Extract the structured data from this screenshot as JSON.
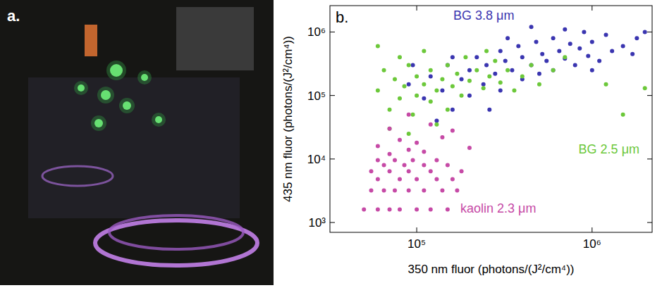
{
  "photo": {
    "label": "a."
  },
  "chart_data": {
    "type": "scatter",
    "panel_label": "b.",
    "xlabel": "350 nm fluor (photons/(J²/cm⁴))",
    "ylabel": "435 nm fluor (photons/(J²/cm⁴))",
    "log": true,
    "grid": false,
    "xlim": [
      32000,
      2200000
    ],
    "ylim": [
      700,
      2600000
    ],
    "xticks": [
      {
        "value": 100000,
        "label": "10⁵"
      },
      {
        "value": 1000000,
        "label": "10⁶"
      }
    ],
    "yticks": [
      {
        "value": 1000,
        "label": "10³"
      },
      {
        "value": 10000,
        "label": "10⁴"
      },
      {
        "value": 100000,
        "label": "10⁵"
      },
      {
        "value": 1000000,
        "label": "10⁶"
      }
    ],
    "series": [
      {
        "name": "BG 3.8 μm",
        "color": "#3a35b0",
        "marker": "dot",
        "x": [
          90000,
          110000,
          120000,
          140000,
          150000,
          160000,
          180000,
          200000,
          200000,
          220000,
          240000,
          250000,
          280000,
          300000,
          300000,
          320000,
          350000,
          380000,
          400000,
          400000,
          450000,
          480000,
          500000,
          520000,
          550000,
          600000,
          600000,
          650000,
          700000,
          750000,
          800000,
          850000,
          900000,
          950000,
          1000000,
          1100000,
          1200000,
          1300000,
          1500000,
          1700000,
          2000000,
          130000,
          260000,
          160000,
          450000,
          700000,
          1000000,
          1800000,
          95000,
          330000
        ],
        "values": [
          150000,
          90000,
          200000,
          120000,
          300000,
          60000,
          180000,
          250000,
          100000,
          400000,
          150000,
          300000,
          220000,
          500000,
          120000,
          350000,
          250000,
          600000,
          180000,
          400000,
          300000,
          700000,
          220000,
          450000,
          350000,
          800000,
          250000,
          500000,
          380000,
          650000,
          300000,
          550000,
          1000000,
          420000,
          700000,
          350000,
          900000,
          500000,
          600000,
          450000,
          1000000,
          40000,
          60000,
          400000,
          1200000,
          1100000,
          250000,
          800000,
          300000,
          800000
        ]
      },
      {
        "name": "BG 2.5 μm",
        "color": "#6cc83a",
        "marker": "dot",
        "x": [
          60000,
          65000,
          70000,
          75000,
          80000,
          80000,
          85000,
          90000,
          95000,
          100000,
          100000,
          110000,
          110000,
          120000,
          120000,
          130000,
          140000,
          150000,
          150000,
          160000,
          170000,
          180000,
          190000,
          200000,
          220000,
          240000,
          260000,
          280000,
          300000,
          330000,
          360000,
          400000,
          450000,
          500000,
          600000,
          70000,
          90000,
          130000,
          250000,
          1200000,
          2000000,
          60000,
          1500000,
          700000
        ],
        "values": [
          120000,
          250000,
          60000,
          180000,
          90000,
          400000,
          140000,
          300000,
          50000,
          200000,
          100000,
          150000,
          500000,
          80000,
          250000,
          120000,
          180000,
          300000,
          60000,
          140000,
          220000,
          100000,
          400000,
          170000,
          250000,
          130000,
          200000,
          350000,
          160000,
          250000,
          120000,
          200000,
          300000,
          150000,
          250000,
          30000,
          25000,
          35000,
          500000,
          150000,
          130000,
          600000,
          50000,
          400000
        ]
      },
      {
        "name": "kaolin 2.3 μm",
        "color": "#c64aa6",
        "marker": "dot",
        "x": [
          50000,
          60000,
          70000,
          80000,
          100000,
          120000,
          150000,
          55000,
          65000,
          75000,
          90000,
          110000,
          140000,
          170000,
          60000,
          80000,
          100000,
          130000,
          160000,
          55000,
          70000,
          90000,
          120000,
          180000,
          65000,
          85000,
          110000,
          150000,
          60000,
          75000,
          95000,
          130000,
          70000,
          90000,
          110000,
          60000,
          80000,
          100000,
          140000,
          70000,
          120000,
          90000,
          160000,
          200000
        ],
        "values": [
          1600,
          1600,
          1600,
          1600,
          1600,
          1600,
          1600,
          3200,
          3200,
          3200,
          3200,
          3200,
          3200,
          3200,
          4800,
          4800,
          4800,
          4800,
          4800,
          6400,
          6400,
          6400,
          6400,
          6400,
          8000,
          8000,
          8000,
          8000,
          9600,
          9600,
          9600,
          9600,
          12000,
          14000,
          13000,
          16000,
          20000,
          18000,
          22000,
          30000,
          35000,
          50000,
          28000,
          15000
        ]
      }
    ]
  }
}
